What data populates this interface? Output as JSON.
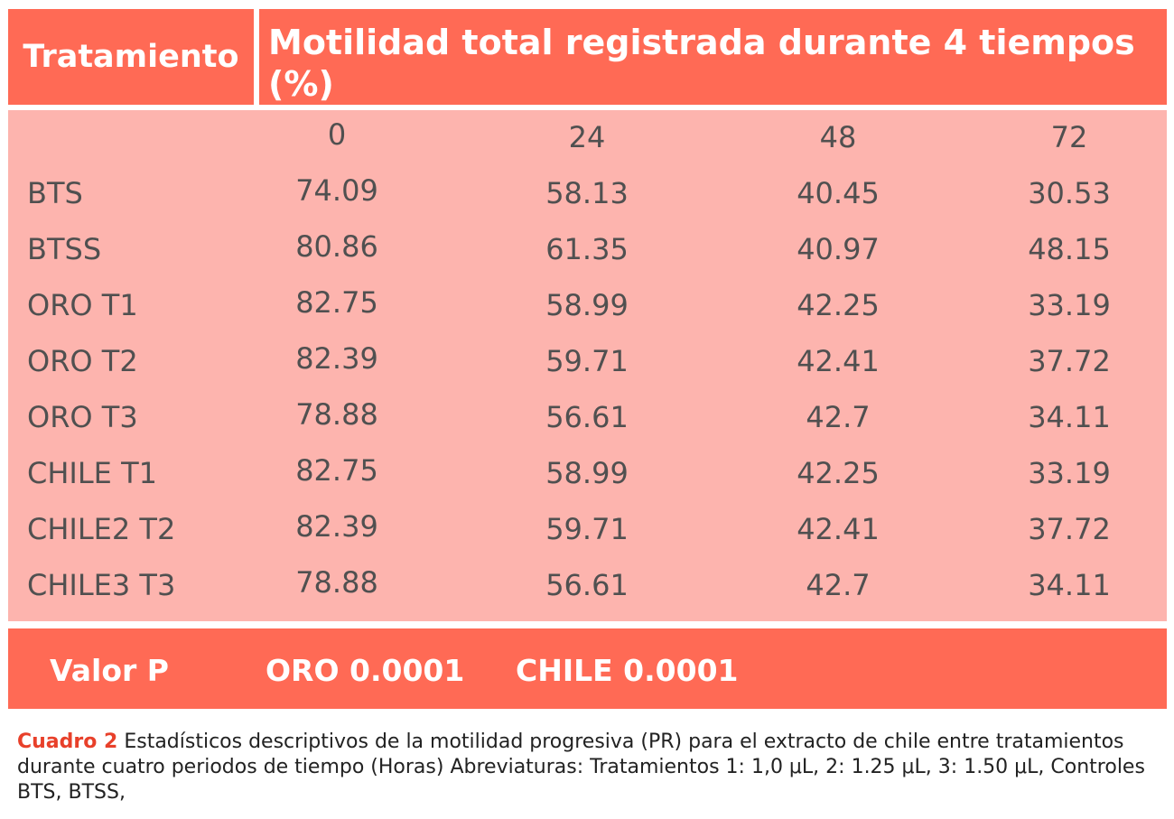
{
  "header": {
    "treatment_label": "Tratamiento",
    "motility_title": "Motilidad total registrada durante 4 tiempos (%)"
  },
  "columns": [
    "0",
    "24",
    "48",
    "72"
  ],
  "rows": [
    {
      "label": "BTS",
      "values": [
        "74.09",
        "58.13",
        "40.45",
        "30.53"
      ]
    },
    {
      "label": "BTSS",
      "values": [
        "80.86",
        "61.35",
        "40.97",
        "48.15"
      ]
    },
    {
      "label": "ORO T1",
      "values": [
        "82.75",
        "58.99",
        "42.25",
        "33.19"
      ]
    },
    {
      "label": "ORO T2",
      "values": [
        "82.39",
        "59.71",
        "42.41",
        "37.72"
      ]
    },
    {
      "label": "ORO T3",
      "values": [
        "78.88",
        "56.61",
        "42.7",
        "34.11"
      ]
    },
    {
      "label": "CHILE T1",
      "values": [
        "82.75",
        "58.99",
        "42.25",
        "33.19"
      ]
    },
    {
      "label": "CHILE2 T2",
      "values": [
        "82.39",
        "59.71",
        "42.41",
        "37.72"
      ]
    },
    {
      "label": "CHILE3 T3",
      "values": [
        "78.88",
        "56.61",
        "42.7",
        "34.11"
      ]
    }
  ],
  "footer": {
    "p_label": "Valor P",
    "oro_p": "ORO 0.0001",
    "chile_p": "CHILE 0.0001"
  },
  "caption": {
    "lead": "Cuadro 2",
    "text": " Estadísticos descriptivos de la motilidad progresiva (PR) para el extracto de chile entre tratamientos durante cuatro periodos de tiempo (Horas) Abreviaturas: Tratamientos 1: 1,0 μL, 2: 1.25 μL, 3: 1.50 μL, Controles BTS, BTSS,"
  },
  "colors": {
    "header_bg": "#ff6a55",
    "body_bg": "#fdb4ae",
    "text_dark": "#505050",
    "caption_accent": "#e8402a"
  }
}
